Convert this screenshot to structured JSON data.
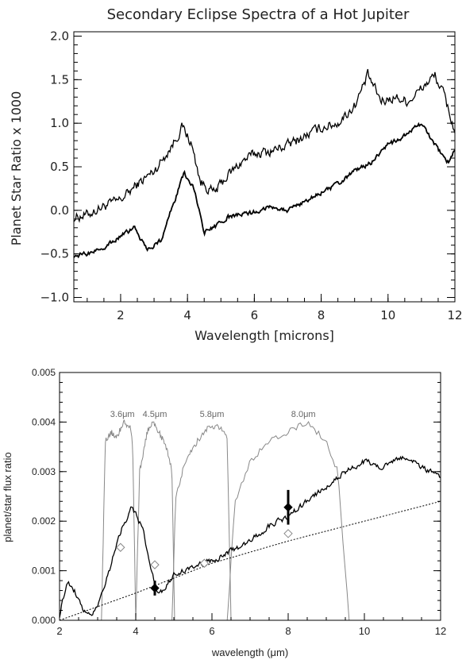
{
  "chart_data": [
    {
      "type": "line",
      "title": "Secondary Eclipse Spectra of a Hot Jupiter",
      "xlabel": "Wavelength [microns]",
      "ylabel": "Planet Star Ratio x 1000",
      "xlim": [
        0.6,
        12
      ],
      "ylim": [
        -1.05,
        2.05
      ],
      "xticks": [
        2,
        4,
        6,
        8,
        10,
        12
      ],
      "yticks": [
        -1.0,
        -0.5,
        0.0,
        0.5,
        1.0,
        1.5,
        2.0
      ],
      "xtick_labels": [
        "2",
        "4",
        "6",
        "8",
        "10",
        "12"
      ],
      "ytick_labels": [
        "−1.0",
        "−0.5",
        "0.0",
        "0.5",
        "1.0",
        "1.5",
        "2.0"
      ],
      "grid": false,
      "series": [
        {
          "x": [
            0.6,
            1.0,
            1.5,
            2.0,
            2.5,
            3.0,
            3.5,
            3.85,
            4.1,
            4.4,
            4.8,
            5.2,
            5.6,
            6.0,
            6.5,
            7.0,
            7.5,
            8.0,
            8.5,
            9.0,
            9.4,
            9.8,
            10.2,
            10.6,
            11.0,
            11.4,
            11.7,
            12.0
          ],
          "y": [
            -0.08,
            -0.05,
            0.05,
            0.12,
            0.3,
            0.45,
            0.72,
            0.96,
            0.78,
            0.32,
            0.2,
            0.4,
            0.55,
            0.65,
            0.68,
            0.75,
            0.85,
            0.95,
            1.0,
            1.2,
            1.55,
            1.25,
            1.3,
            1.25,
            1.4,
            1.55,
            1.3,
            0.9
          ],
          "noise": 0.09
        },
        {
          "x": [
            0.6,
            1.0,
            1.5,
            2.0,
            2.4,
            2.8,
            3.2,
            3.6,
            3.9,
            4.2,
            4.5,
            4.8,
            5.2,
            5.6,
            6.0,
            6.5,
            7.0,
            7.5,
            8.0,
            8.5,
            9.0,
            9.5,
            10.0,
            10.5,
            11.0,
            11.4,
            11.8,
            12.0
          ],
          "y": [
            -0.52,
            -0.5,
            -0.42,
            -0.3,
            -0.2,
            -0.45,
            -0.35,
            0.1,
            0.42,
            0.25,
            -0.25,
            -0.2,
            -0.08,
            -0.05,
            -0.02,
            0.05,
            0.0,
            0.1,
            0.2,
            0.3,
            0.45,
            0.55,
            0.75,
            0.85,
            1.0,
            0.75,
            0.55,
            0.7
          ],
          "noise": 0.04
        }
      ]
    },
    {
      "type": "line",
      "xlabel": "wavelength (μm)",
      "ylabel": "planet/star flux ratio",
      "xlim": [
        2,
        12
      ],
      "ylim": [
        0,
        0.005
      ],
      "xticks": [
        2,
        4,
        6,
        8,
        10,
        12
      ],
      "yticks": [
        0.0,
        0.001,
        0.002,
        0.003,
        0.004,
        0.005
      ],
      "xtick_labels": [
        "2",
        "4",
        "6",
        "8",
        "10",
        "12"
      ],
      "ytick_labels": [
        "0.000",
        "0.001",
        "0.002",
        "0.003",
        "0.004",
        "0.005"
      ],
      "grid": false,
      "filter_labels": [
        "3.6μm",
        "4.5μm",
        "5.8μm",
        "8.0μm"
      ],
      "filters": [
        {
          "x": [
            3.1,
            3.2,
            3.35,
            3.5,
            3.7,
            3.85,
            3.92,
            4.0
          ],
          "y": [
            0.0,
            0.0036,
            0.0038,
            0.0037,
            0.004,
            0.0039,
            0.0035,
            0.0
          ]
        },
        {
          "x": [
            4.0,
            4.1,
            4.3,
            4.45,
            4.6,
            4.8,
            4.95,
            5.02
          ],
          "y": [
            0.0,
            0.003,
            0.0038,
            0.004,
            0.0038,
            0.0035,
            0.003,
            0.0
          ]
        },
        {
          "x": [
            4.95,
            5.05,
            5.3,
            5.6,
            5.9,
            6.2,
            6.4,
            6.5
          ],
          "y": [
            0.0,
            0.0025,
            0.0032,
            0.0036,
            0.0039,
            0.0039,
            0.0037,
            0.0
          ]
        },
        {
          "x": [
            6.4,
            6.6,
            7.0,
            7.5,
            8.0,
            8.5,
            9.0,
            9.3,
            9.45,
            9.6
          ],
          "y": [
            0.0,
            0.0024,
            0.0032,
            0.0036,
            0.0038,
            0.004,
            0.0036,
            0.003,
            0.0015,
            0.0
          ]
        }
      ],
      "model": {
        "x": [
          2.0,
          2.2,
          2.4,
          2.6,
          2.8,
          3.0,
          3.3,
          3.6,
          3.9,
          4.2,
          4.4,
          4.6,
          4.8,
          5.0,
          5.5,
          6.0,
          6.5,
          7.0,
          7.5,
          8.0,
          8.5,
          9.0,
          9.5,
          10.0,
          10.5,
          11.0,
          11.5,
          12.0
        ],
        "y": [
          0.0001,
          0.0008,
          0.0006,
          0.0002,
          0.0001,
          0.0003,
          0.001,
          0.0018,
          0.0023,
          0.0018,
          0.001,
          0.0005,
          0.0007,
          0.0009,
          0.0011,
          0.0012,
          0.0014,
          0.0016,
          0.0019,
          0.0021,
          0.0024,
          0.0027,
          0.003,
          0.0032,
          0.0031,
          0.0033,
          0.0031,
          0.0029
        ],
        "noise": 9e-05
      },
      "blackbody": {
        "x": [
          2,
          4,
          6,
          8,
          10,
          12
        ],
        "y": [
          0.0,
          0.00055,
          0.00115,
          0.0016,
          0.002,
          0.0024
        ]
      },
      "band_model_points": {
        "x": [
          3.6,
          4.5,
          5.8,
          8.0
        ],
        "y": [
          0.00147,
          0.00112,
          0.00115,
          0.00175
        ]
      },
      "observations": {
        "x": [
          4.5,
          8.0
        ],
        "y": [
          0.00065,
          0.00228
        ],
        "yerr": [
          0.00015,
          0.00035
        ]
      }
    }
  ]
}
